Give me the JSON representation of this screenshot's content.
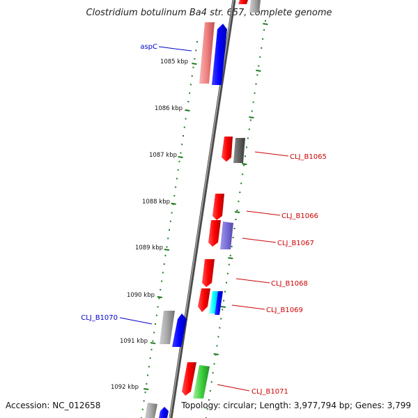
{
  "title": "Clostridium botulinum Ba4 str. 657, complete genome",
  "accession_text": "Accession: NC_012658",
  "topology_text": "Topology: circular; Length: 3,977,794 bp; Genes: 3,799",
  "colors": {
    "backbone": "#7a7a7a",
    "tick": "#1f7a1f",
    "forward_label": "#0000cc",
    "reverse_label": "#cc0000"
  },
  "scale_labels": [
    "1085 kbp",
    "1086 kbp",
    "1087 kbp",
    "1088 kbp",
    "1089 kbp",
    "1090 kbp",
    "1091 kbp",
    "1092 kbp"
  ],
  "gene_labels": [
    {
      "text": "aspC",
      "strand": "forward"
    },
    {
      "text": "CLJ_B1065",
      "strand": "reverse"
    },
    {
      "text": "CLJ_B1066",
      "strand": "reverse"
    },
    {
      "text": "CLJ_B1067",
      "strand": "reverse"
    },
    {
      "text": "CLJ_B1068",
      "strand": "reverse"
    },
    {
      "text": "CLJ_B1069",
      "strand": "reverse"
    },
    {
      "text": "CLJ_B1070",
      "strand": "forward"
    },
    {
      "text": "CLJ_B1071",
      "strand": "reverse"
    }
  ]
}
